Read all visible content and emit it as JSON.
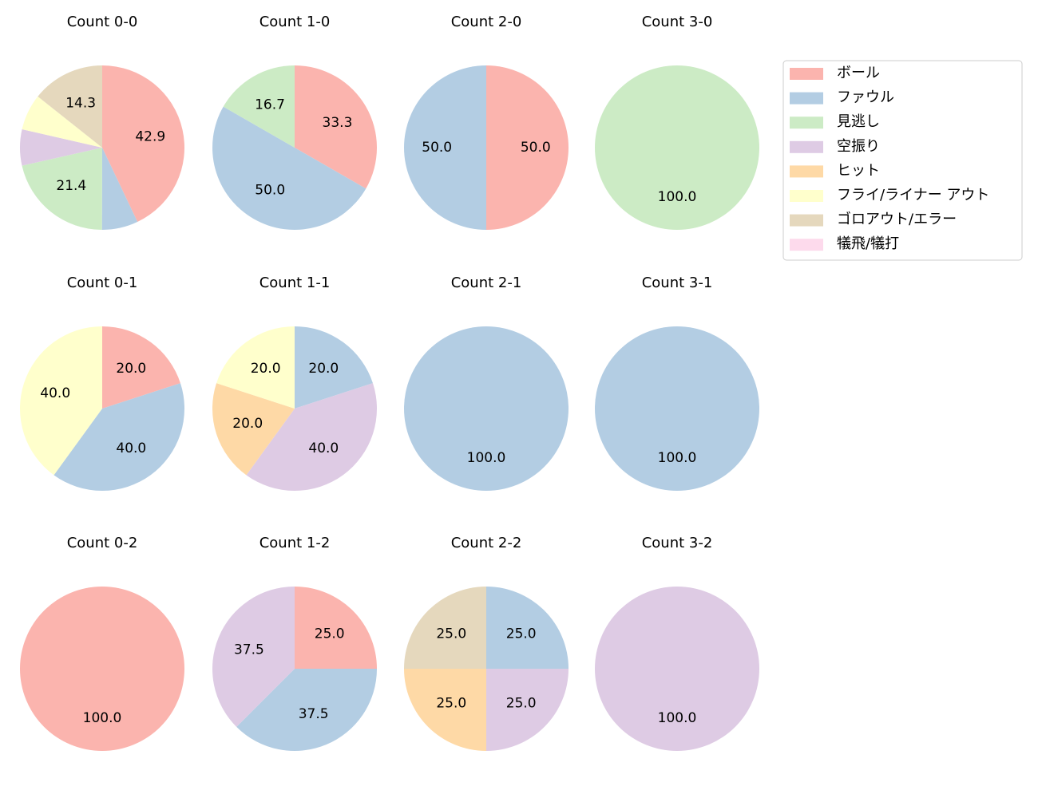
{
  "legend": {
    "labels": [
      "ボール",
      "ファウル",
      "見逃し",
      "空振り",
      "ヒット",
      "フライ/ライナー アウト",
      "ゴロアウト/エラー",
      "犠飛/犠打"
    ],
    "colors": [
      "#fbb4ae",
      "#b3cde3",
      "#ccebc5",
      "#decbe4",
      "#fed9a6",
      "#ffffcc",
      "#e5d8bd",
      "#fddaec"
    ]
  },
  "chart_data": [
    {
      "type": "pie",
      "title": "Count 0-0",
      "values": [
        42.9,
        7.1,
        21.4,
        7.1,
        0,
        7.1,
        14.3,
        0
      ],
      "value_labels": [
        "42.9",
        null,
        "21.4",
        null,
        null,
        null,
        "14.3",
        null
      ]
    },
    {
      "type": "pie",
      "title": "Count 1-0",
      "values": [
        33.3,
        50.0,
        16.7,
        0,
        0,
        0,
        0,
        0
      ],
      "value_labels": [
        "33.3",
        "50.0",
        "16.7",
        null,
        null,
        null,
        null,
        null
      ]
    },
    {
      "type": "pie",
      "title": "Count 2-0",
      "values": [
        50.0,
        50.0,
        0,
        0,
        0,
        0,
        0,
        0
      ],
      "value_labels": [
        "50.0",
        "50.0",
        null,
        null,
        null,
        null,
        null,
        null
      ]
    },
    {
      "type": "pie",
      "title": "Count 3-0",
      "values": [
        0,
        0,
        100.0,
        0,
        0,
        0,
        0,
        0
      ],
      "value_labels": [
        null,
        null,
        "100.0",
        null,
        null,
        null,
        null,
        null
      ]
    },
    {
      "type": "pie",
      "title": "Count 0-1",
      "values": [
        20.0,
        40.0,
        0,
        0,
        0,
        40.0,
        0,
        0
      ],
      "value_labels": [
        "20.0",
        "40.0",
        null,
        null,
        null,
        "40.0",
        null,
        null
      ]
    },
    {
      "type": "pie",
      "title": "Count 1-1",
      "values": [
        0,
        20.0,
        0,
        40.0,
        20.0,
        20.0,
        0,
        0
      ],
      "value_labels": [
        null,
        "20.0",
        null,
        "40.0",
        "20.0",
        "20.0",
        null,
        null
      ]
    },
    {
      "type": "pie",
      "title": "Count 2-1",
      "values": [
        0,
        100.0,
        0,
        0,
        0,
        0,
        0,
        0
      ],
      "value_labels": [
        null,
        "100.0",
        null,
        null,
        null,
        null,
        null,
        null
      ]
    },
    {
      "type": "pie",
      "title": "Count 3-1",
      "values": [
        0,
        100.0,
        0,
        0,
        0,
        0,
        0,
        0
      ],
      "value_labels": [
        null,
        "100.0",
        null,
        null,
        null,
        null,
        null,
        null
      ]
    },
    {
      "type": "pie",
      "title": "Count 0-2",
      "values": [
        100.0,
        0,
        0,
        0,
        0,
        0,
        0,
        0
      ],
      "value_labels": [
        "100.0",
        null,
        null,
        null,
        null,
        null,
        null,
        null
      ]
    },
    {
      "type": "pie",
      "title": "Count 1-2",
      "values": [
        25.0,
        37.5,
        0,
        37.5,
        0,
        0,
        0,
        0
      ],
      "value_labels": [
        "25.0",
        "37.5",
        null,
        "37.5",
        null,
        null,
        null,
        null
      ]
    },
    {
      "type": "pie",
      "title": "Count 2-2",
      "values": [
        0,
        25.0,
        0,
        25.0,
        25.0,
        0,
        25.0,
        0
      ],
      "value_labels": [
        null,
        "25.0",
        null,
        "25.0",
        "25.0",
        null,
        "25.0",
        null
      ]
    },
    {
      "type": "pie",
      "title": "Count 3-2",
      "values": [
        0,
        0,
        0,
        100.0,
        0,
        0,
        0,
        0
      ],
      "value_labels": [
        null,
        null,
        null,
        "100.0",
        null,
        null,
        null,
        null
      ]
    }
  ]
}
